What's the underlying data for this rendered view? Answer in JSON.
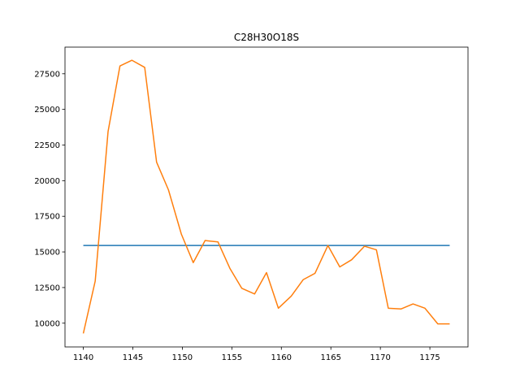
{
  "chart_data": {
    "type": "line",
    "title": "C28H30O18S",
    "xlabel": "",
    "ylabel": "",
    "xlim": [
      1138.15,
      1178.85
    ],
    "ylim": [
      8333,
      29370
    ],
    "xticks": [
      1140,
      1145,
      1150,
      1155,
      1160,
      1165,
      1170,
      1175
    ],
    "yticks": [
      10000,
      12500,
      15000,
      17500,
      20000,
      22500,
      25000,
      27500
    ],
    "grid": false,
    "colors": {
      "reference": "#1f77b4",
      "signal": "#ff7f0e"
    },
    "series": [
      {
        "x": [
          1140,
          1177
        ],
        "y": [
          15450,
          15450
        ]
      },
      {
        "x": [
          1140.0,
          1141.2,
          1142.5,
          1143.7,
          1144.9,
          1146.2,
          1147.4,
          1148.6,
          1149.9,
          1151.1,
          1152.3,
          1153.6,
          1154.8,
          1156.0,
          1157.3,
          1158.5,
          1159.7,
          1161.0,
          1162.2,
          1163.4,
          1164.7,
          1165.9,
          1167.1,
          1168.4,
          1169.6,
          1170.8,
          1172.1,
          1173.3,
          1174.5,
          1175.8,
          1177.0
        ],
        "y": [
          9280,
          12950,
          23450,
          28050,
          28450,
          27950,
          21300,
          19350,
          16250,
          14250,
          15800,
          15700,
          13850,
          12450,
          12050,
          13550,
          11050,
          11900,
          13050,
          13500,
          15450,
          13950,
          14450,
          15400,
          15150,
          11050,
          11000,
          11350,
          11050,
          9950,
          9950
        ]
      }
    ]
  }
}
